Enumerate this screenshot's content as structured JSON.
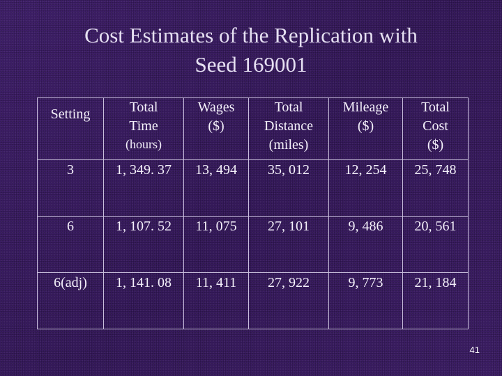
{
  "slide": {
    "title_line1": "Cost Estimates of the Replication with",
    "title_line2": "Seed 169001",
    "page_number": "41"
  },
  "table": {
    "headers": [
      {
        "lines": [
          "Setting"
        ]
      },
      {
        "lines": [
          "Total",
          "Time",
          "(hours)"
        ]
      },
      {
        "lines": [
          "Wages",
          "($)"
        ]
      },
      {
        "lines": [
          "Total",
          "Distance",
          "(miles)"
        ]
      },
      {
        "lines": [
          "Mileage",
          "($)"
        ]
      },
      {
        "lines": [
          "Total",
          "Cost",
          "($)"
        ]
      }
    ],
    "rows": [
      [
        "3",
        "1, 349. 37",
        "13, 494",
        "35, 012",
        "12, 254",
        "25, 748"
      ],
      [
        "6",
        "1, 107. 52",
        "11, 075",
        "27, 101",
        "9, 486",
        "20, 561"
      ],
      [
        "6(adj)",
        "1, 141. 08",
        "11, 411",
        "27, 922",
        "9, 773",
        "21, 184"
      ]
    ]
  },
  "colors": {
    "background": "#3a1c62",
    "text": "#f4f0fa",
    "title": "#e6e0f2",
    "border": "#c9bedd"
  }
}
